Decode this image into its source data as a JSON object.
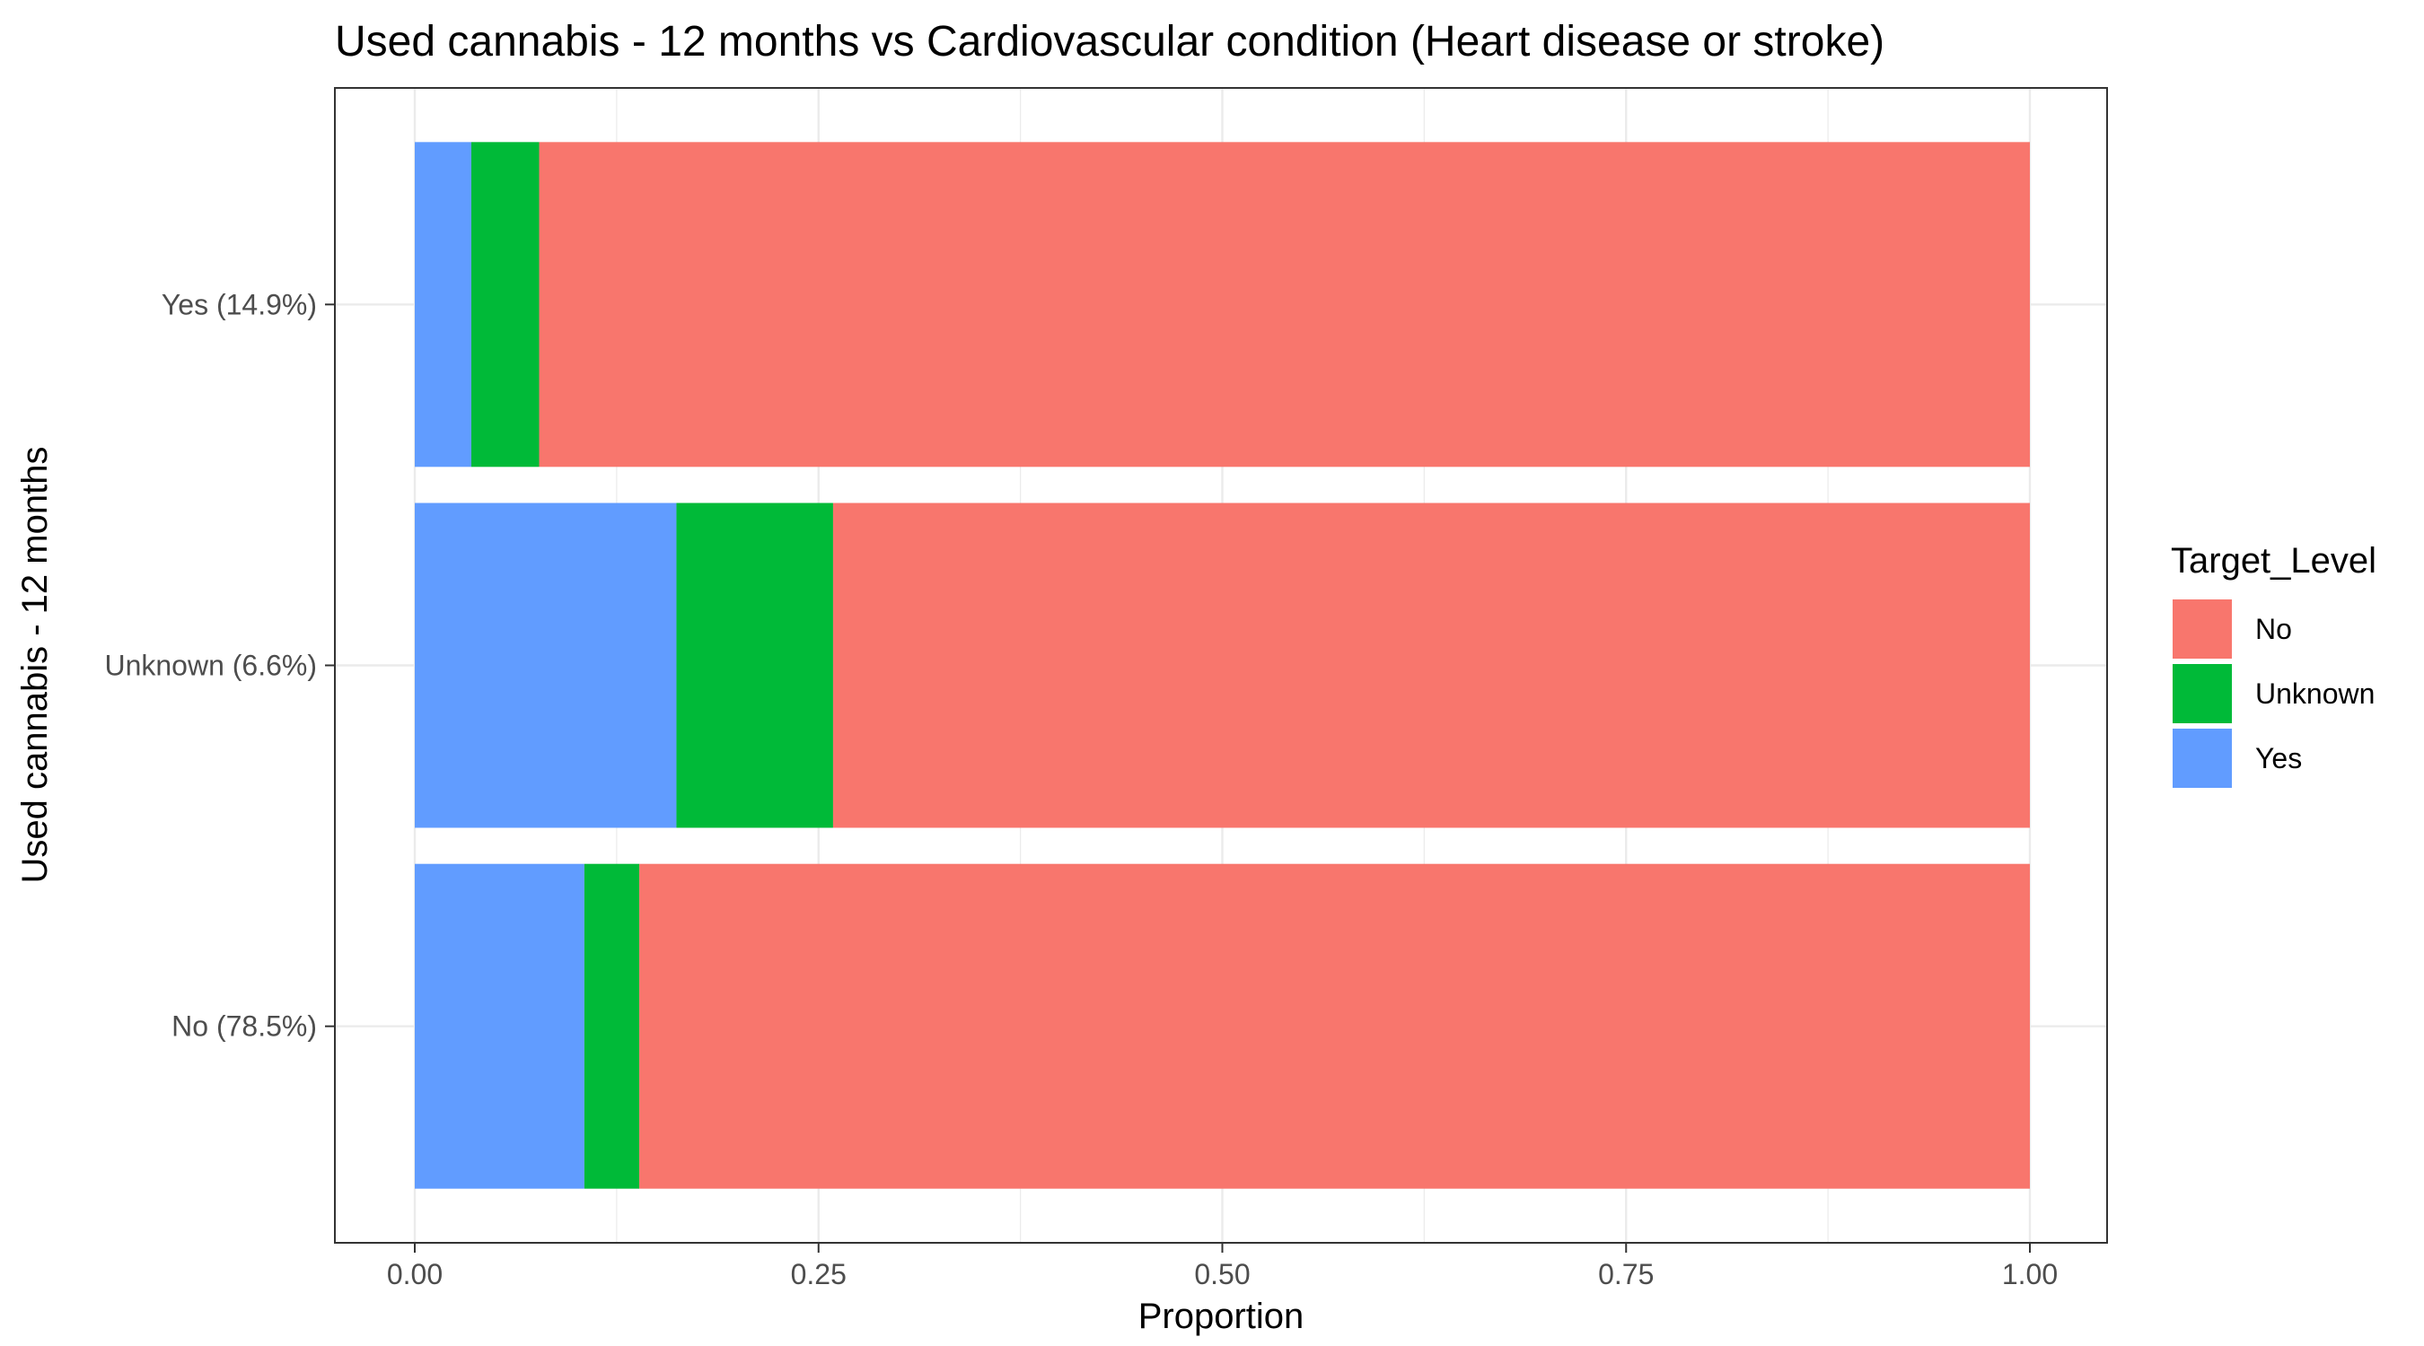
{
  "chart_data": {
    "type": "bar",
    "orientation": "horizontal",
    "stacked": true,
    "title": "Used cannabis - 12 months vs Cardiovascular condition (Heart disease or stroke)",
    "xlabel": "Proportion",
    "ylabel": "Used cannabis - 12 months",
    "xlim": [
      0,
      1
    ],
    "x_ticks": [
      "0.00",
      "0.25",
      "0.50",
      "0.75",
      "1.00"
    ],
    "x_tick_values": [
      0,
      0.25,
      0.5,
      0.75,
      1.0
    ],
    "categories": [
      "No (78.5%)",
      "Unknown (6.6%)",
      "Yes (14.9%)"
    ],
    "series": [
      {
        "name": "Yes",
        "values": [
          0.105,
          0.162,
          0.035
        ],
        "color": "#619CFF"
      },
      {
        "name": "Unknown",
        "values": [
          0.034,
          0.097,
          0.042
        ],
        "color": "#00BA38"
      },
      {
        "name": "No",
        "values": [
          0.861,
          0.741,
          0.923
        ],
        "color": "#F8766D"
      }
    ],
    "legend": {
      "title": "Target_Level",
      "position": "right",
      "entries": [
        {
          "label": "No",
          "color": "#F8766D"
        },
        {
          "label": "Unknown",
          "color": "#00BA38"
        },
        {
          "label": "Yes",
          "color": "#619CFF"
        }
      ]
    },
    "grid": true,
    "background": "#ffffff",
    "grid_color": "#ebebeb",
    "panel_border_color": "#333333"
  }
}
